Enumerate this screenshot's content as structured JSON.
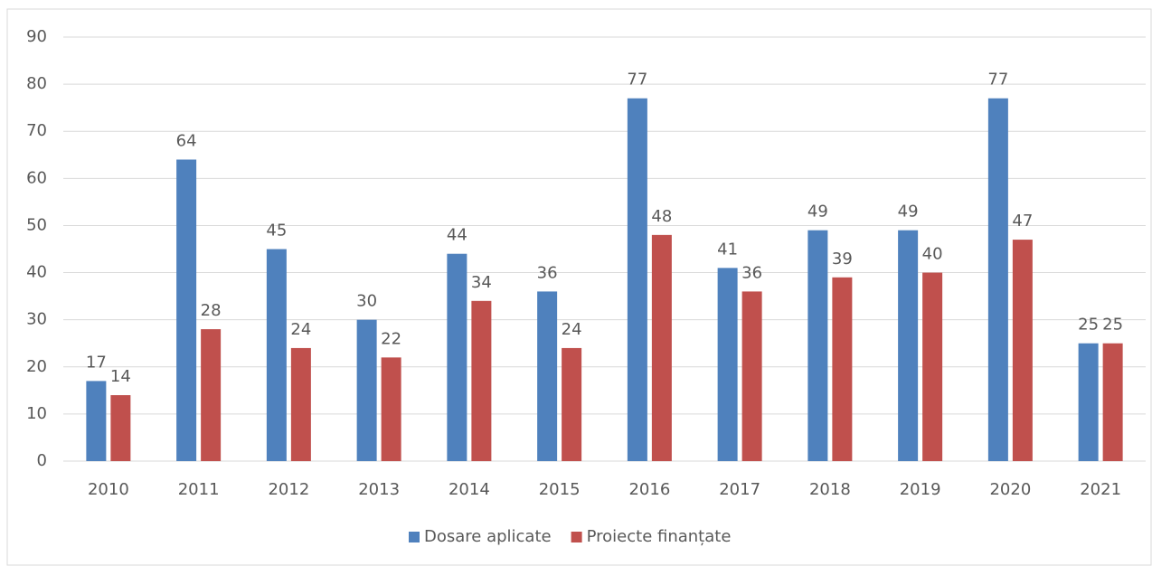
{
  "chart_data": {
    "type": "bar",
    "categories": [
      "2010",
      "2011",
      "2012",
      "2013",
      "2014",
      "2015",
      "2016",
      "2017",
      "2018",
      "2019",
      "2020",
      "2021"
    ],
    "series": [
      {
        "name": "Dosare aplicate",
        "color": "#4f81bd",
        "values": [
          17,
          64,
          45,
          30,
          44,
          36,
          77,
          41,
          49,
          49,
          77,
          25
        ]
      },
      {
        "name": "Proiecte finanțate",
        "color": "#c0504d",
        "values": [
          14,
          28,
          24,
          22,
          34,
          24,
          48,
          36,
          39,
          40,
          47,
          25
        ]
      }
    ],
    "ylim": [
      0,
      90
    ],
    "yticks": [
      0,
      10,
      20,
      30,
      40,
      50,
      60,
      70,
      80,
      90
    ],
    "grid": true,
    "legend": "bottom"
  }
}
